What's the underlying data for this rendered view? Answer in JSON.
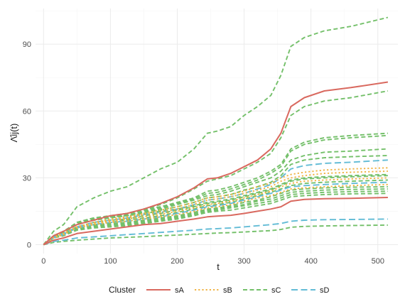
{
  "chart_data": {
    "type": "line",
    "title": "",
    "xlabel": "t",
    "ylabel": "Λ̂ij(t)",
    "x_ticks": [
      0,
      100,
      200,
      300,
      400,
      500
    ],
    "y_ticks": [
      0,
      30,
      60,
      90
    ],
    "xlim": [
      -12,
      530
    ],
    "ylim": [
      -4,
      106
    ],
    "grid": true,
    "legend": {
      "title": "Cluster",
      "position": "bottom",
      "entries": [
        {
          "label": "sA",
          "color": "#d9695f",
          "dash": "solid"
        },
        {
          "label": "sB",
          "color": "#f0b445",
          "dash": "dotted"
        },
        {
          "label": "sC",
          "color": "#74c06a",
          "dash": "dashed"
        },
        {
          "label": "sD",
          "color": "#63bcd6",
          "dash": "longdash"
        }
      ]
    },
    "x": [
      0,
      15,
      30,
      50,
      75,
      100,
      125,
      150,
      175,
      200,
      225,
      245,
      260,
      280,
      300,
      320,
      340,
      355,
      370,
      390,
      420,
      460,
      515
    ],
    "series": [
      {
        "cluster": "sC",
        "values": [
          0,
          6,
          9,
          17,
          21,
          24,
          26,
          30,
          34,
          37,
          43,
          50,
          51,
          53,
          58,
          62,
          67,
          76,
          89,
          93,
          96,
          98,
          102
        ]
      },
      {
        "cluster": "sA",
        "values": [
          0,
          4,
          6,
          9,
          11,
          13,
          14,
          16,
          18.5,
          21.5,
          25.5,
          29.5,
          30,
          32,
          35,
          38,
          43,
          50,
          62,
          66,
          69,
          70.5,
          73
        ]
      },
      {
        "cluster": "sC",
        "values": [
          0,
          4,
          6,
          9,
          11,
          12.5,
          14,
          16,
          18,
          21,
          25,
          28.5,
          29.5,
          31,
          34,
          37,
          41,
          48,
          58,
          62,
          64.5,
          66,
          69
        ]
      },
      {
        "cluster": "sC",
        "values": [
          0,
          4,
          6,
          10,
          12,
          13,
          14,
          16,
          17,
          19,
          21,
          24,
          24.5,
          26,
          28,
          30,
          33,
          36,
          43,
          46,
          48,
          49,
          50
        ]
      },
      {
        "cluster": "sC",
        "values": [
          0,
          4,
          6,
          9.5,
          11.5,
          12.5,
          13.5,
          15.5,
          16.5,
          18.5,
          20.5,
          23,
          23.5,
          25,
          27,
          29,
          32,
          35,
          42,
          45,
          47,
          48,
          49
        ]
      },
      {
        "cluster": "sC",
        "values": [
          0,
          3.5,
          5.5,
          9,
          11,
          12,
          13,
          15,
          16,
          18,
          20,
          22,
          22.5,
          24,
          26,
          28,
          30,
          33,
          38,
          40,
          41.5,
          42,
          43
        ]
      },
      {
        "cluster": "sC",
        "values": [
          0,
          3.5,
          5.5,
          9,
          11,
          12,
          13,
          14.5,
          15.5,
          17,
          19,
          21,
          21.5,
          22.5,
          24.5,
          26,
          28,
          31,
          36,
          38,
          39,
          39.5,
          40
        ]
      },
      {
        "cluster": "sD",
        "values": [
          0,
          3.5,
          5,
          8,
          10,
          11,
          12,
          13.5,
          14.5,
          16,
          18,
          20,
          20.5,
          21.5,
          23,
          25,
          27,
          30,
          34,
          35.5,
          36.5,
          37,
          38
        ]
      },
      {
        "cluster": "sB",
        "values": [
          0,
          3.5,
          5,
          8,
          10,
          11.5,
          12.5,
          14,
          15.5,
          17,
          19,
          21,
          21.5,
          22.5,
          24,
          26,
          27.5,
          30,
          31.5,
          32.5,
          33.5,
          34,
          34.5
        ]
      },
      {
        "cluster": "sB",
        "values": [
          0,
          3.5,
          5,
          8,
          10,
          11,
          12,
          13.5,
          14.5,
          16,
          18,
          20,
          20.5,
          21.5,
          23,
          24.5,
          26,
          28.5,
          30,
          31,
          32,
          32.5,
          33
        ]
      },
      {
        "cluster": "sC",
        "values": [
          0,
          4,
          5.5,
          10,
          12,
          12.5,
          13,
          14,
          15,
          16,
          17.5,
          19,
          19.5,
          20.5,
          22,
          23.5,
          25,
          27,
          29,
          30,
          30.5,
          31,
          31.5
        ]
      },
      {
        "cluster": "sC",
        "values": [
          0,
          3,
          5,
          8,
          10,
          11,
          11.5,
          13,
          14,
          15.5,
          17,
          18.5,
          19,
          20,
          21.5,
          23,
          24.5,
          26.5,
          28.5,
          29.5,
          30,
          30.5,
          31
        ]
      },
      {
        "cluster": "sB",
        "values": [
          0,
          3,
          5,
          8,
          9.5,
          10.5,
          11.5,
          12.5,
          13.5,
          15,
          16.5,
          18,
          18.5,
          19.5,
          21,
          22.5,
          24,
          26,
          27.5,
          28.5,
          29,
          29.5,
          30
        ]
      },
      {
        "cluster": "sC",
        "values": [
          0,
          3,
          4.5,
          7.5,
          9,
          10,
          11,
          12,
          13,
          14.5,
          16,
          17.5,
          18,
          19,
          20.5,
          22,
          23.5,
          25,
          26.5,
          27.5,
          28,
          28.5,
          29
        ]
      },
      {
        "cluster": "sD",
        "values": [
          0,
          3,
          4.5,
          7.5,
          9,
          10,
          10.5,
          11.5,
          12.5,
          14,
          15.5,
          17,
          17.5,
          18.5,
          20,
          21.5,
          23,
          24.5,
          26,
          26.5,
          27,
          27.5,
          28
        ]
      },
      {
        "cluster": "sB",
        "values": [
          0,
          3,
          4.5,
          7.5,
          9,
          10,
          10.5,
          11.5,
          12.5,
          13.5,
          15,
          16.5,
          17,
          18,
          19.5,
          21,
          22,
          23.5,
          25,
          25.5,
          26,
          26.5,
          27
        ]
      },
      {
        "cluster": "sC",
        "values": [
          0,
          3,
          4.5,
          7,
          8.5,
          9.5,
          10,
          11,
          12,
          13,
          14.5,
          16,
          16.5,
          17.5,
          19,
          20,
          21.5,
          23,
          24.5,
          25,
          25.5,
          25.8,
          26
        ]
      },
      {
        "cluster": "sC",
        "values": [
          0,
          3,
          4.5,
          7,
          8.5,
          9,
          9.5,
          10.5,
          11.5,
          12.5,
          14,
          15.5,
          16,
          17,
          18,
          19.5,
          20.5,
          22,
          23.5,
          24,
          24.5,
          24.8,
          25
        ]
      },
      {
        "cluster": "sC",
        "values": [
          0,
          3,
          4.5,
          7,
          8,
          8.5,
          9,
          10,
          11,
          12,
          13.5,
          15,
          15.5,
          16.5,
          17.5,
          18.5,
          19.5,
          21,
          22.5,
          23,
          23.5,
          23.8,
          24
        ]
      },
      {
        "cluster": "sC",
        "values": [
          0,
          3,
          4,
          6.5,
          7.5,
          8,
          8.5,
          9.5,
          10.5,
          11.5,
          13,
          14.5,
          15,
          15.5,
          16.5,
          17.5,
          18.5,
          20,
          21.5,
          22,
          22.5,
          22.8,
          23
        ]
      },
      {
        "cluster": "sA",
        "values": [
          0,
          2,
          3,
          5,
          6,
          7,
          8,
          9,
          9.5,
          10.5,
          11.5,
          12.5,
          12.8,
          13.2,
          14,
          15,
          16,
          17,
          19.5,
          20.3,
          20.6,
          20.8,
          21.2
        ]
      },
      {
        "cluster": "sD",
        "values": [
          0,
          1.5,
          2,
          3,
          3.5,
          4,
          4.5,
          5,
          5.5,
          6,
          6.5,
          7,
          7.2,
          7.5,
          8,
          8.5,
          9,
          9.5,
          10.5,
          11,
          11.2,
          11.3,
          11.5
        ]
      },
      {
        "cluster": "sC",
        "values": [
          0,
          1,
          1.5,
          2,
          2.5,
          3,
          3.3,
          3.6,
          4,
          4.3,
          4.7,
          5,
          5.2,
          5.4,
          5.7,
          6,
          6.3,
          6.8,
          7.8,
          8.2,
          8.4,
          8.6,
          8.8
        ]
      }
    ]
  }
}
